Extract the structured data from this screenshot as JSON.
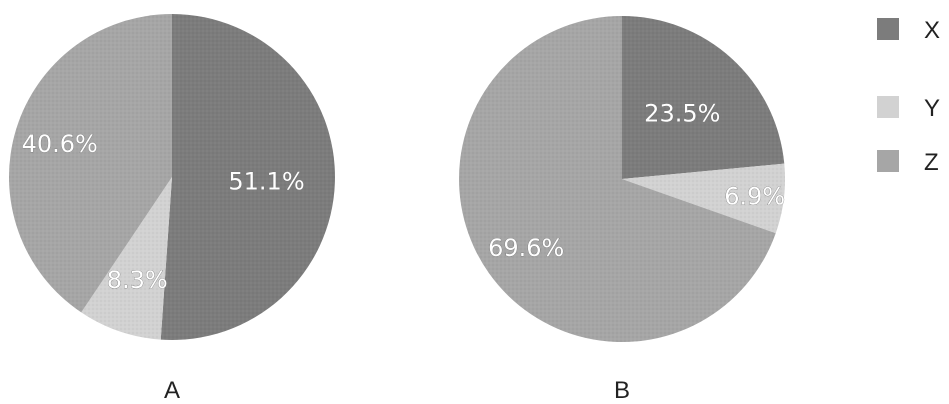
{
  "legend": [
    {
      "key": "X",
      "label": "X",
      "color": "#7c7c7c"
    },
    {
      "key": "Y",
      "label": "Y",
      "color": "#d2d2d2"
    },
    {
      "key": "Z",
      "label": "Z",
      "color": "#a6a6a6"
    }
  ],
  "chart_data": [
    {
      "type": "pie",
      "caption": "A",
      "slices": [
        {
          "series": "X",
          "value": 51.1,
          "label": "51.1%"
        },
        {
          "series": "Y",
          "value": 8.3,
          "label": "8.3%"
        },
        {
          "series": "Z",
          "value": 40.6,
          "label": "40.6%"
        }
      ],
      "start": "12 o'clock",
      "direction": "clockwise"
    },
    {
      "type": "pie",
      "caption": "B",
      "slices": [
        {
          "series": "X",
          "value": 23.5,
          "label": "23.5%"
        },
        {
          "series": "Y",
          "value": 6.9,
          "label": "6.9%"
        },
        {
          "series": "Z",
          "value": 69.6,
          "label": "69.6%"
        }
      ],
      "start": "12 o'clock",
      "direction": "clockwise"
    }
  ]
}
